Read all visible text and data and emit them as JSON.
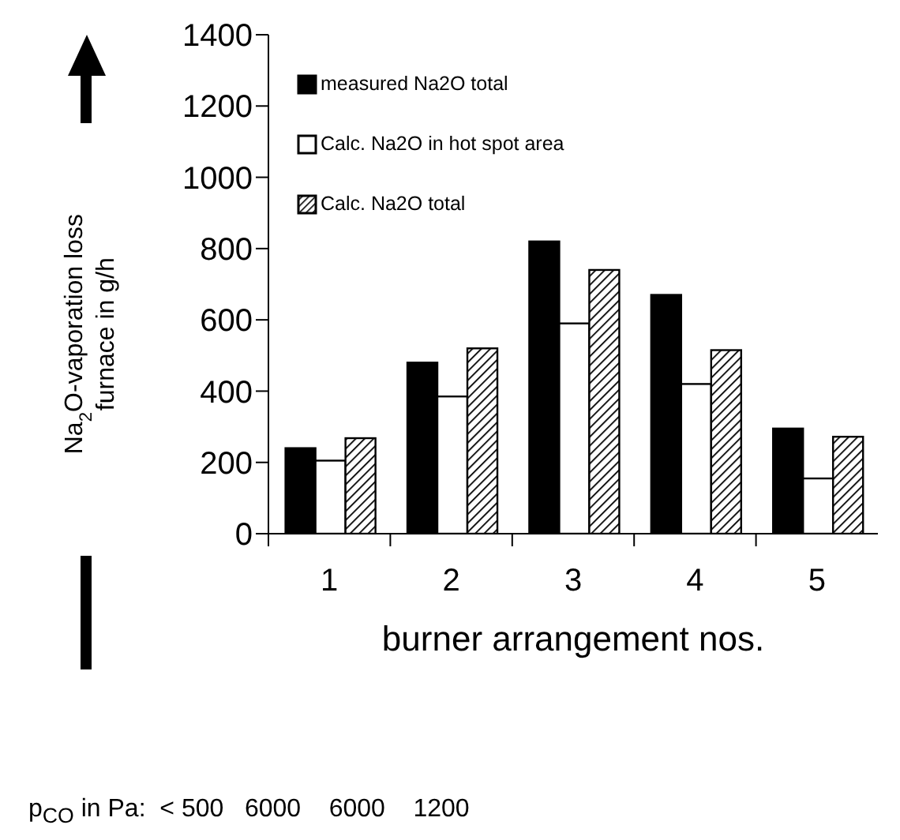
{
  "chart_data": {
    "type": "bar",
    "categories": [
      "1",
      "2",
      "3",
      "4",
      "5"
    ],
    "xlabel": "burner arrangement nos.",
    "ylabel": "Na$_{2}$O-vaporation loss\nfurnace in g/h",
    "ylim": [
      0,
      1400
    ],
    "yticks": [
      0,
      200,
      400,
      600,
      800,
      1000,
      1200,
      1400
    ],
    "legend": "top left",
    "grid": false,
    "series": [
      {
        "name": "measured Na2O total",
        "color": "#000000",
        "values": [
          240,
          480,
          820,
          670,
          295
        ]
      },
      {
        "name": "Calc. Na2O in hot spot area",
        "color": "#ffffff",
        "values": [
          205,
          385,
          590,
          420,
          155
        ]
      },
      {
        "name": "Calc. Na2O total",
        "color": "#000000",
        "values": [
          268,
          520,
          740,
          515,
          272
        ]
      }
    ],
    "annotations": [
      "p$_{CO}$ in Pa:  < 500   6000    6000    1200"
    ]
  }
}
